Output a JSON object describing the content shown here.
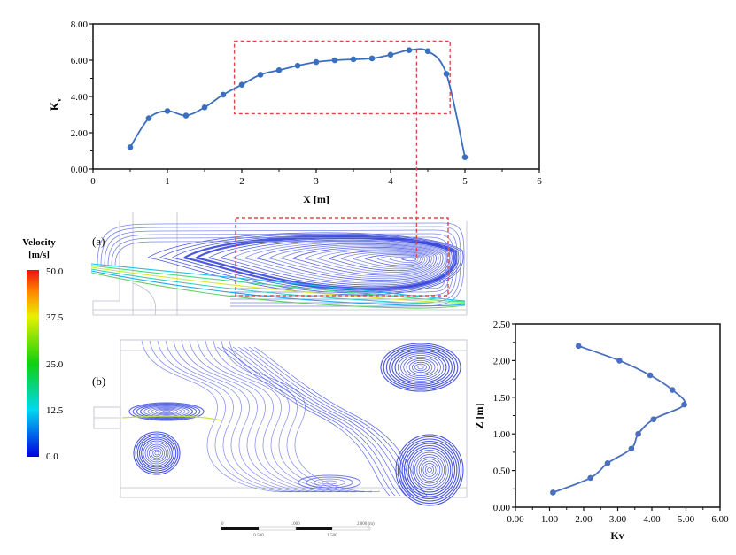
{
  "chart_data": [
    {
      "type": "line",
      "id": "top",
      "xlabel": "X [m]",
      "ylabel": "K",
      "ylabel_sub": "v",
      "xlim": [
        0,
        6
      ],
      "ylim": [
        0,
        8
      ],
      "xticks": [
        "0",
        "1",
        "2",
        "3",
        "4",
        "5",
        "6"
      ],
      "yticks": [
        "0.00",
        "2.00",
        "4.00",
        "6.00",
        "8.00"
      ],
      "x": [
        0.5,
        0.75,
        1.0,
        1.25,
        1.5,
        1.75,
        2.0,
        2.25,
        2.5,
        2.75,
        3.0,
        3.25,
        3.5,
        3.75,
        4.0,
        4.25,
        4.5,
        4.75,
        5.0
      ],
      "y": [
        1.2,
        2.8,
        3.2,
        2.95,
        3.4,
        4.1,
        4.65,
        5.2,
        5.45,
        5.7,
        5.9,
        6.0,
        6.05,
        6.1,
        6.3,
        6.55,
        6.5,
        5.25,
        0.65
      ],
      "highlight_box": {
        "x": [
          1.9,
          4.8
        ],
        "y": [
          3.05,
          7.05
        ]
      },
      "marker_line_x": 4.35,
      "color": "#3a6fbf"
    },
    {
      "type": "line",
      "id": "right",
      "xlabel": "Kv",
      "ylabel": "Z [m]",
      "xlim": [
        0,
        6
      ],
      "ylim": [
        0,
        2.5
      ],
      "xticks": [
        "0.00",
        "1.00",
        "2.00",
        "3.00",
        "4.00",
        "5.00",
        "6.00"
      ],
      "yticks": [
        "0.00",
        "0.50",
        "1.00",
        "1.50",
        "2.00",
        "2.50"
      ],
      "x": [
        1.1,
        2.2,
        2.7,
        3.4,
        3.6,
        4.05,
        4.95,
        4.6,
        3.95,
        3.05,
        1.85
      ],
      "y": [
        0.2,
        0.4,
        0.6,
        0.8,
        1.0,
        1.2,
        1.4,
        1.6,
        1.8,
        2.0,
        2.2
      ],
      "color": "#4a6fc0"
    }
  ],
  "legend": {
    "title": "Velocity",
    "unit": "[m/s]",
    "ticks": [
      "50.0",
      "37.5",
      "25.0",
      "12.5",
      "0.0"
    ]
  },
  "panels": {
    "a_label": "(a)",
    "b_label": "(b)"
  },
  "scale_bar": {
    "top_labels": [
      "0",
      "1.000",
      "2.000 (m)"
    ],
    "bottom_labels": [
      "0.500",
      "1.500"
    ]
  }
}
